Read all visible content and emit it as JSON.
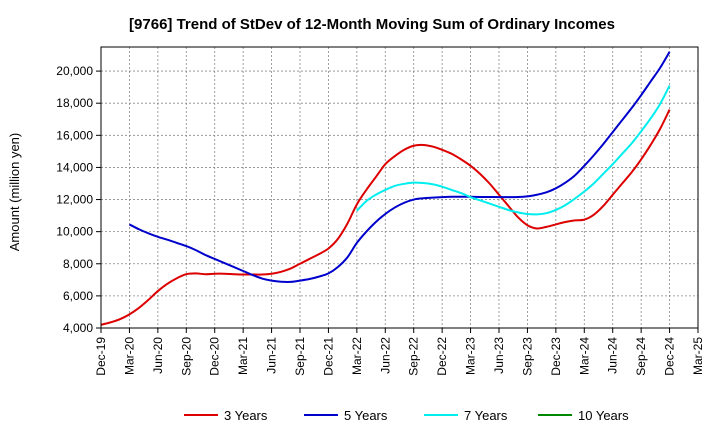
{
  "chart_data": {
    "type": "line",
    "title": "[9766]  Trend of StDev of 12-Month Moving Sum of Ordinary Incomes",
    "xlabel": "",
    "ylabel": "Amount (million yen)",
    "ylim": [
      4000,
      21500
    ],
    "yticks": [
      4000,
      6000,
      8000,
      10000,
      12000,
      14000,
      16000,
      18000,
      20000
    ],
    "ytick_labels": [
      "4,000",
      "6,000",
      "8,000",
      "10,000",
      "12,000",
      "14,000",
      "16,000",
      "18,000",
      "20,000"
    ],
    "x_categories": [
      "Dec-19",
      "Mar-20",
      "Jun-20",
      "Sep-20",
      "Dec-20",
      "Mar-21",
      "Jun-21",
      "Sep-21",
      "Dec-21",
      "Mar-22",
      "Jun-22",
      "Sep-22",
      "Dec-22",
      "Mar-23",
      "Jun-23",
      "Sep-23",
      "Dec-23",
      "Mar-24",
      "Jun-24",
      "Sep-24",
      "Dec-24",
      "Mar-25"
    ],
    "legend_position": "bottom",
    "grid": true,
    "series": [
      {
        "name": "3 Years",
        "color": "#dd0000",
        "x": [
          0,
          0.333,
          0.667,
          1,
          1.333,
          1.667,
          2,
          2.333,
          2.667,
          3,
          3.333,
          3.667,
          4,
          4.333,
          4.667,
          5,
          5.333,
          5.667,
          6,
          6.333,
          6.667,
          7,
          7.333,
          7.667,
          8,
          8.333,
          8.667,
          9,
          9.333,
          9.667,
          10,
          10.333,
          10.667,
          11,
          11.333,
          11.667,
          12,
          12.333,
          12.667,
          13,
          13.333,
          13.667,
          14,
          14.333,
          14.667,
          15,
          15.333,
          15.667,
          16,
          16.333,
          16.667,
          17,
          17.333,
          17.667,
          18,
          18.333,
          18.667,
          19,
          19.333,
          19.667,
          20
        ],
        "values": [
          4200,
          4350,
          4550,
          4850,
          5250,
          5750,
          6300,
          6750,
          7100,
          7350,
          7400,
          7350,
          7380,
          7380,
          7350,
          7330,
          7330,
          7330,
          7380,
          7500,
          7700,
          8000,
          8300,
          8600,
          8950,
          9550,
          10500,
          11700,
          12600,
          13400,
          14200,
          14700,
          15100,
          15350,
          15400,
          15300,
          15100,
          14850,
          14500,
          14100,
          13600,
          13000,
          12300,
          11600,
          10900,
          10400,
          10200,
          10300,
          10450,
          10600,
          10700,
          10750,
          11050,
          11600,
          12300,
          13000,
          13700,
          14500,
          15400,
          16400,
          17600
        ]
      },
      {
        "name": "5 Years",
        "color": "#0000cc",
        "x": [
          1,
          1.333,
          1.667,
          2,
          2.333,
          2.667,
          3,
          3.333,
          3.667,
          4,
          4.333,
          4.667,
          5,
          5.333,
          5.667,
          6,
          6.333,
          6.667,
          7,
          7.333,
          7.667,
          8,
          8.333,
          8.667,
          9,
          9.333,
          9.667,
          10,
          10.333,
          10.667,
          11,
          11.333,
          11.667,
          12,
          12.333,
          12.667,
          13,
          13.333,
          13.667,
          14,
          14.333,
          14.667,
          15,
          15.333,
          15.667,
          16,
          16.333,
          16.667,
          17,
          17.333,
          17.667,
          18,
          18.333,
          18.667,
          19,
          19.333,
          19.667,
          20
        ],
        "values": [
          10450,
          10150,
          9900,
          9680,
          9500,
          9300,
          9100,
          8850,
          8550,
          8300,
          8050,
          7800,
          7550,
          7300,
          7080,
          6950,
          6880,
          6870,
          6950,
          7050,
          7200,
          7400,
          7800,
          8400,
          9300,
          10000,
          10600,
          11100,
          11500,
          11800,
          12000,
          12080,
          12120,
          12150,
          12170,
          12170,
          12170,
          12160,
          12160,
          12150,
          12150,
          12160,
          12200,
          12300,
          12450,
          12700,
          13050,
          13500,
          14100,
          14750,
          15450,
          16200,
          16950,
          17700,
          18500,
          19350,
          20200,
          21200
        ]
      },
      {
        "name": "7 Years",
        "color": "#00eeee",
        "x": [
          9,
          9.333,
          9.667,
          10,
          10.333,
          10.667,
          11,
          11.333,
          11.667,
          12,
          12.333,
          12.667,
          13,
          13.333,
          13.667,
          14,
          14.333,
          14.667,
          15,
          15.333,
          15.667,
          16,
          16.333,
          16.667,
          17,
          17.333,
          17.667,
          18,
          18.333,
          18.667,
          19,
          19.333,
          19.667,
          20
        ],
        "values": [
          11300,
          11900,
          12300,
          12600,
          12850,
          12980,
          13050,
          13030,
          12950,
          12800,
          12600,
          12400,
          12150,
          11950,
          11750,
          11550,
          11350,
          11200,
          11100,
          11080,
          11150,
          11350,
          11650,
          12050,
          12500,
          13000,
          13600,
          14200,
          14850,
          15500,
          16250,
          17050,
          17950,
          19100
        ]
      },
      {
        "name": "10 Years",
        "color": "#008800",
        "x": [],
        "values": []
      }
    ]
  }
}
